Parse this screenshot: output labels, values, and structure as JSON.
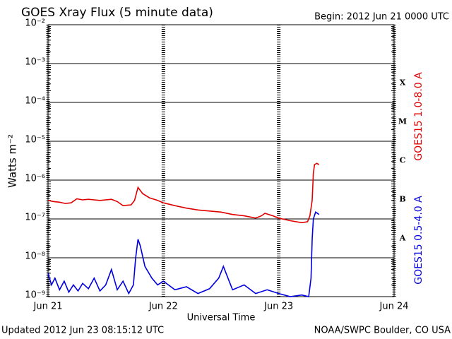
{
  "chart_data": {
    "type": "line",
    "title": "GOES Xray Flux (5 minute data)",
    "subtitle": "Begin:  2012 Jun 21 0000 UTC",
    "x_label": "Universal Time",
    "y_label": "Watts m⁻²",
    "footer_left": "Updated 2012 Jun 23 08:15:12 UTC",
    "footer_right": "NOAA/SWPC Boulder, CO USA",
    "log_scale": true,
    "grid": true,
    "xlim": [
      21,
      24
    ],
    "xticks": [
      {
        "value": 21,
        "label": "Jun 21"
      },
      {
        "value": 22,
        "label": "Jun 22"
      },
      {
        "value": 23,
        "label": "Jun 23"
      },
      {
        "value": 24,
        "label": "Jun 24"
      }
    ],
    "ylim": [
      1e-09,
      0.01
    ],
    "yticks": [
      {
        "value": 1e-09,
        "label": "10⁻⁹"
      },
      {
        "value": 1e-08,
        "label": "10⁻⁸"
      },
      {
        "value": 1e-07,
        "label": "10⁻⁷"
      },
      {
        "value": 1e-06,
        "label": "10⁻⁶"
      },
      {
        "value": 1e-05,
        "label": "10⁻⁵"
      },
      {
        "value": 0.0001,
        "label": "10⁻⁴"
      },
      {
        "value": 0.001,
        "label": "10⁻³"
      },
      {
        "value": 0.01,
        "label": "10⁻²"
      }
    ],
    "flare_classes": [
      "A",
      "B",
      "C",
      "M",
      "X"
    ],
    "series": [
      {
        "name": "GOES15 1.0-8.0 A",
        "color": "#e00000",
        "x": [
          21.0,
          21.05,
          21.1,
          21.15,
          21.2,
          21.25,
          21.3,
          21.35,
          21.45,
          21.55,
          21.6,
          21.65,
          21.72,
          21.75,
          21.78,
          21.82,
          21.88,
          21.95,
          22.0,
          22.1,
          22.2,
          22.3,
          22.4,
          22.5,
          22.6,
          22.7,
          22.8,
          22.85,
          22.88,
          22.95,
          23.0,
          23.1,
          23.2,
          23.25,
          23.27,
          23.29,
          23.3,
          23.31,
          23.33,
          23.35
        ],
        "values": [
          3e-07,
          2.8e-07,
          2.7e-07,
          2.5e-07,
          2.6e-07,
          3.3e-07,
          3.1e-07,
          3.2e-07,
          3e-07,
          3.2e-07,
          2.8e-07,
          2.2e-07,
          2.3e-07,
          3e-07,
          6.5e-07,
          4.5e-07,
          3.5e-07,
          3e-07,
          2.6e-07,
          2.2e-07,
          1.9e-07,
          1.7e-07,
          1.6e-07,
          1.5e-07,
          1.3e-07,
          1.2e-07,
          1.05e-07,
          1.2e-07,
          1.4e-07,
          1.2e-07,
          1.05e-07,
          9e-08,
          8e-08,
          8.5e-08,
          1.2e-07,
          3e-07,
          1.5e-06,
          2.5e-06,
          2.7e-06,
          2.5e-06
        ]
      },
      {
        "name": "GOES15 0.5-4.0 A",
        "color": "#0000e0",
        "x": [
          21.0,
          21.03,
          21.06,
          21.1,
          21.14,
          21.18,
          21.22,
          21.26,
          21.3,
          21.35,
          21.4,
          21.45,
          21.5,
          21.55,
          21.6,
          21.65,
          21.7,
          21.74,
          21.76,
          21.78,
          21.8,
          21.84,
          21.9,
          21.95,
          22.0,
          22.1,
          22.2,
          22.3,
          22.4,
          22.48,
          22.52,
          22.56,
          22.6,
          22.7,
          22.8,
          22.9,
          23.0,
          23.1,
          23.2,
          23.26,
          23.28,
          23.29,
          23.3,
          23.32,
          23.35
        ],
        "values": [
          4e-09,
          2e-09,
          3e-09,
          1.5e-09,
          2.5e-09,
          1.3e-09,
          2e-09,
          1.4e-09,
          2.2e-09,
          1.6e-09,
          3e-09,
          1.4e-09,
          2e-09,
          5e-09,
          1.5e-09,
          2.5e-09,
          1.2e-09,
          2e-09,
          1e-08,
          3e-08,
          2e-08,
          6e-09,
          3e-09,
          2e-09,
          2.5e-09,
          1.5e-09,
          1.8e-09,
          1.2e-09,
          1.6e-09,
          3e-09,
          6e-09,
          3e-09,
          1.5e-09,
          2e-09,
          1.2e-09,
          1.5e-09,
          1.2e-09,
          1e-09,
          1.1e-09,
          1e-09,
          3e-09,
          3e-08,
          1e-07,
          1.5e-07,
          1.3e-07
        ]
      }
    ]
  }
}
